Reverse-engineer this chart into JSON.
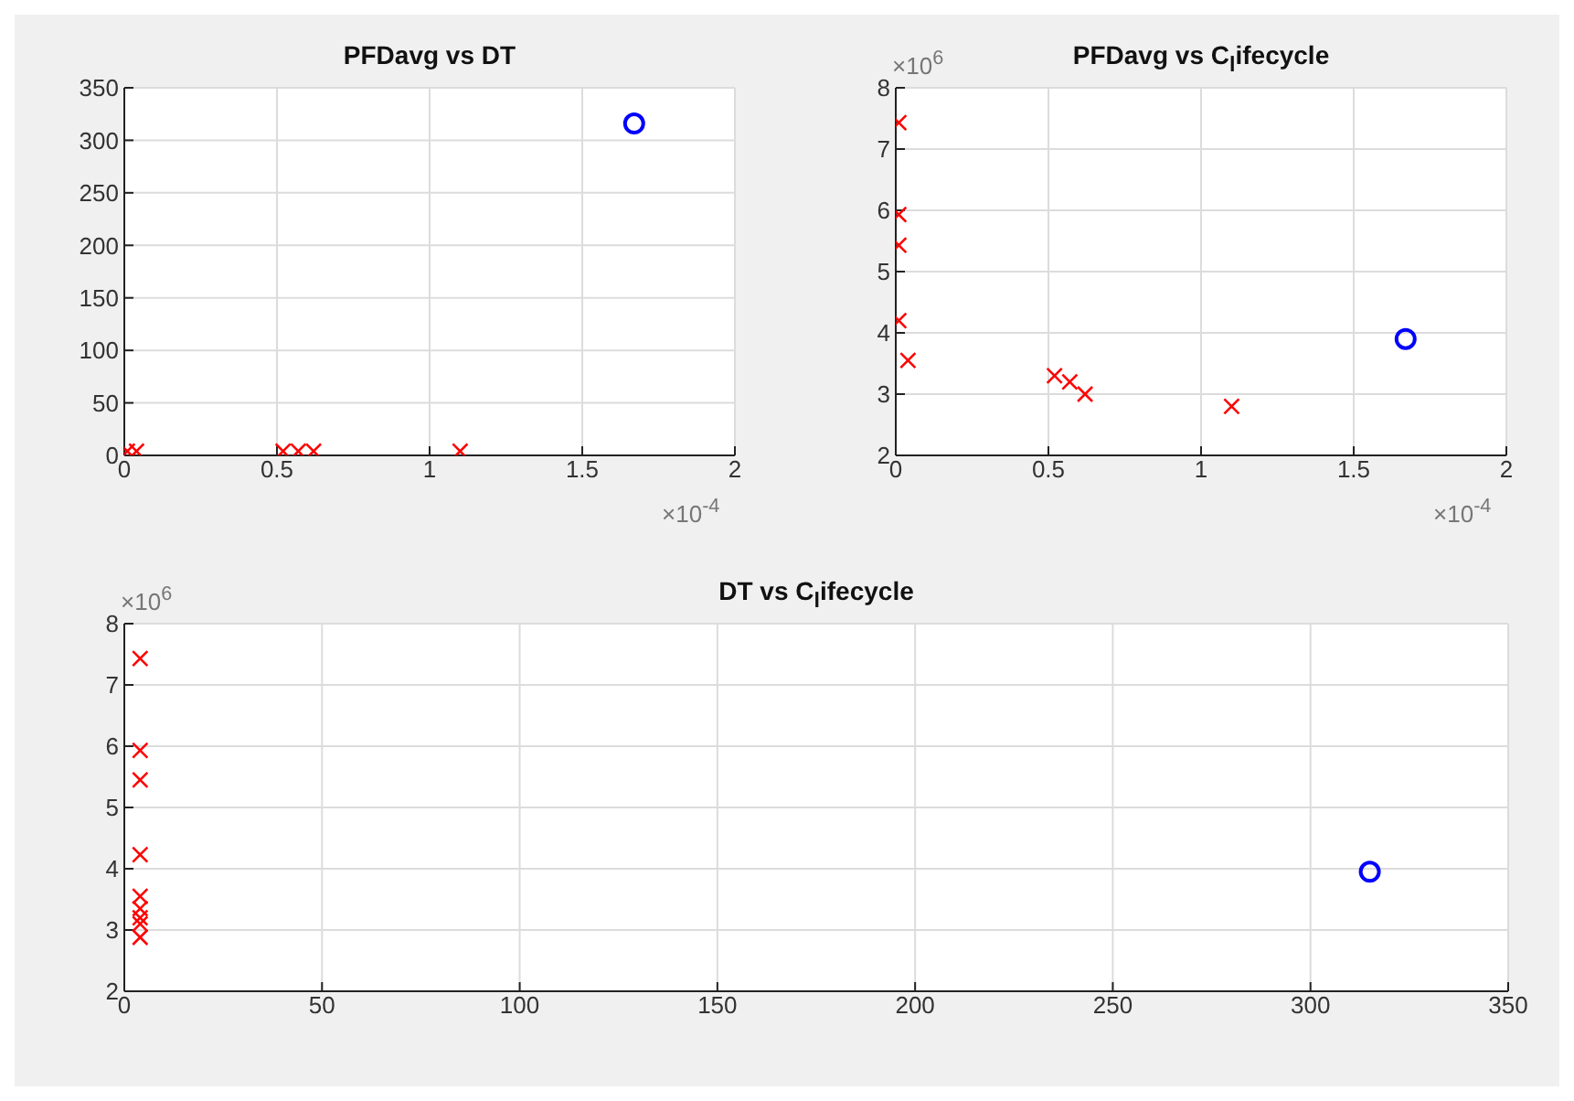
{
  "chart_data": [
    {
      "type": "scatter",
      "title": "PFDavg vs DT",
      "xlabel": "×10$^{-4}$",
      "xlim": [
        0,
        2
      ],
      "xticks": [
        0,
        0.5,
        1,
        1.5,
        2
      ],
      "ylim": [
        0,
        350
      ],
      "yticks": [
        0,
        50,
        100,
        150,
        200,
        250,
        300,
        350
      ],
      "grid": true,
      "series": [
        {
          "color": "#ff0000",
          "marker": "cross",
          "x": [
            0.01,
            0.04,
            0.52,
            0.57,
            0.62,
            1.1
          ],
          "values": [
            4,
            4,
            4,
            4,
            4,
            4
          ]
        },
        {
          "color": "#0000ff",
          "marker": "circle",
          "x": [
            1.67
          ],
          "values": [
            316
          ]
        }
      ]
    },
    {
      "type": "scatter",
      "title": "PFDavg vs C$_{l}$ifecycle",
      "xlabel": "×10$^{-4}$",
      "ylabel": "×10$^{6}$",
      "xlim": [
        0,
        2
      ],
      "xticks": [
        0,
        0.5,
        1,
        1.5,
        2
      ],
      "ylim": [
        2,
        8
      ],
      "yticks": [
        2,
        3,
        4,
        5,
        6,
        7,
        8
      ],
      "grid": true,
      "series": [
        {
          "color": "#ff0000",
          "marker": "cross",
          "x": [
            0.01,
            0.01,
            0.01,
            0.01,
            0.04,
            0.52,
            0.57,
            0.62,
            1.1
          ],
          "values": [
            7.43,
            5.93,
            5.43,
            4.2,
            3.55,
            3.3,
            3.2,
            3.0,
            2.8
          ]
        },
        {
          "color": "#0000ff",
          "marker": "circle",
          "x": [
            1.67
          ],
          "values": [
            3.9
          ]
        }
      ]
    },
    {
      "type": "scatter",
      "title": "DT vs C$_{l}$ifecycle",
      "ylabel": "×10$^{6}$",
      "xlim": [
        0,
        350
      ],
      "xticks": [
        0,
        50,
        100,
        150,
        200,
        250,
        300,
        350
      ],
      "ylim": [
        2,
        8
      ],
      "yticks": [
        2,
        3,
        4,
        5,
        6,
        7,
        8
      ],
      "grid": true,
      "series": [
        {
          "color": "#ff0000",
          "marker": "cross",
          "x": [
            4,
            4,
            4,
            4,
            4,
            4,
            4,
            4,
            4
          ],
          "values": [
            7.43,
            5.93,
            5.45,
            4.23,
            3.55,
            3.35,
            3.2,
            3.1,
            2.88
          ]
        },
        {
          "color": "#0000ff",
          "marker": "circle",
          "x": [
            315
          ],
          "values": [
            3.95
          ]
        }
      ]
    }
  ]
}
